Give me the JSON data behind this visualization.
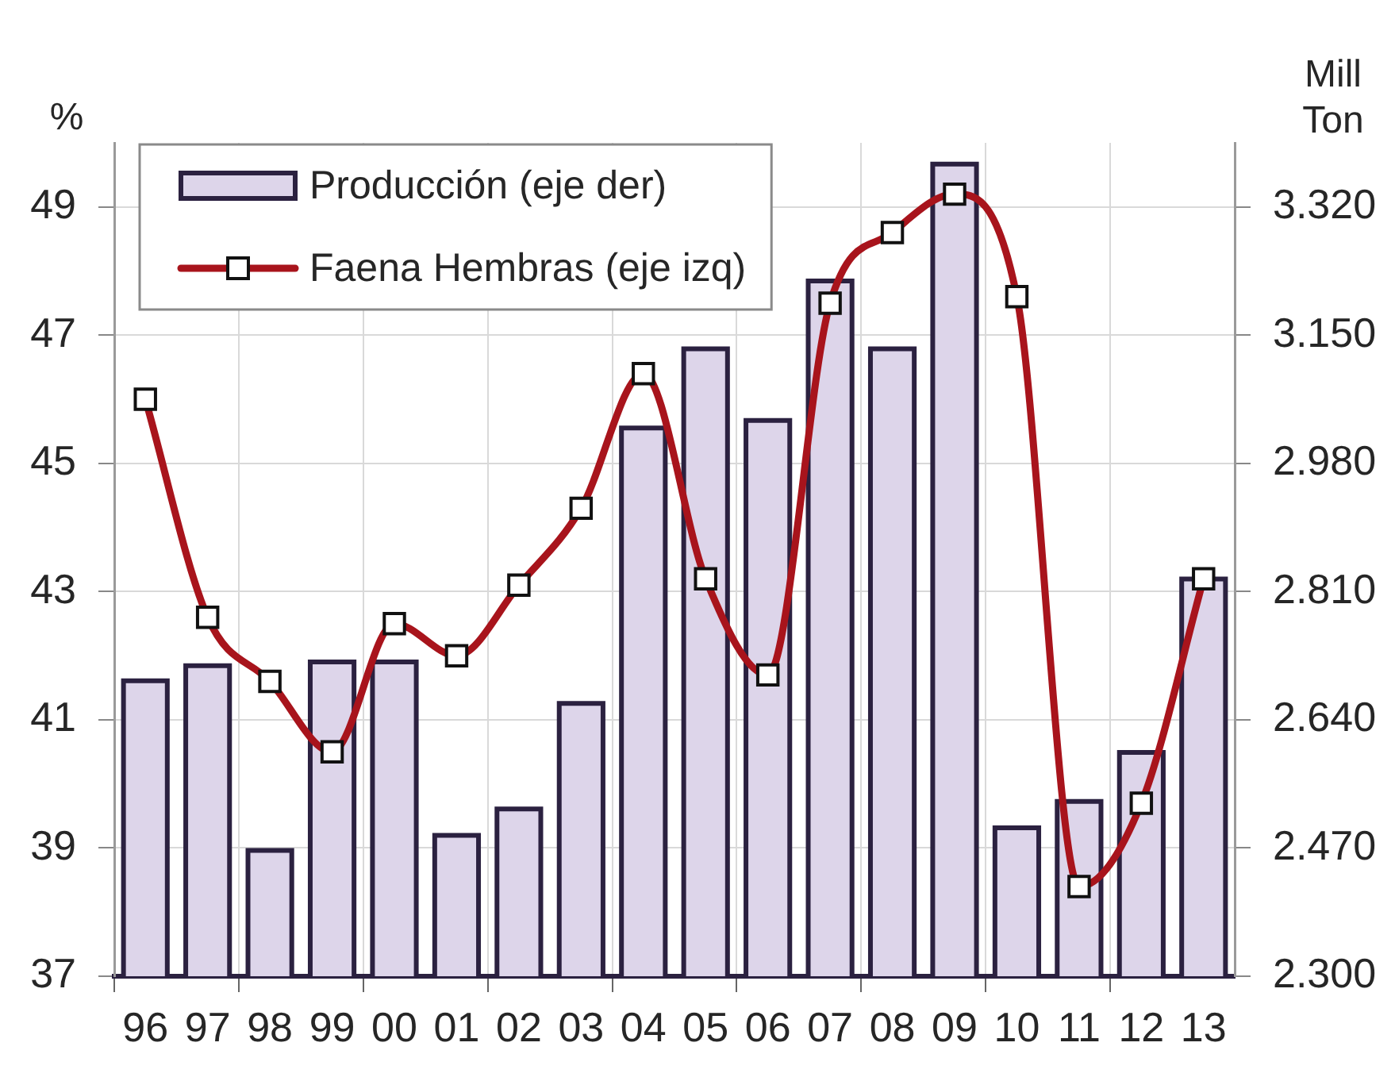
{
  "chart_data": {
    "type": "bar",
    "categories": [
      "96",
      "97",
      "98",
      "99",
      "00",
      "01",
      "02",
      "03",
      "04",
      "05",
      "06",
      "07",
      "08",
      "09",
      "10",
      "11",
      "12",
      "13"
    ],
    "series": [
      {
        "name": "Producción (eje der)",
        "axis": "y2",
        "color": "#ddd5ea",
        "values": [
          2695,
          2715,
          2470,
          2720,
          2720,
          2490,
          2525,
          2665,
          3030,
          3135,
          3040,
          3225,
          3135,
          3380,
          2500,
          2535,
          2600,
          2830
        ]
      },
      {
        "name": "Faena Hembras (eje izq)",
        "type": "line",
        "color": "#a8141c",
        "values": [
          46.0,
          42.6,
          41.6,
          40.5,
          42.5,
          42.0,
          43.1,
          44.3,
          46.4,
          43.2,
          41.7,
          47.5,
          48.6,
          49.2,
          47.6,
          38.4,
          39.7,
          43.2
        ]
      }
    ],
    "ylabel": "%",
    "y2label": "Mill Ton",
    "ylim": [
      37,
      50
    ],
    "yticks": [
      37,
      39,
      41,
      43,
      45,
      47,
      49
    ],
    "y2lim": [
      2300,
      3405
    ],
    "y2ticks": [
      {
        "value": 2300,
        "label": "2.300"
      },
      {
        "value": 2470,
        "label": "2.470"
      },
      {
        "value": 2640,
        "label": "2.640"
      },
      {
        "value": 2810,
        "label": "2.810"
      },
      {
        "value": 2980,
        "label": "2.980"
      },
      {
        "value": 3150,
        "label": "3.150"
      },
      {
        "value": 3320,
        "label": "3.320"
      }
    ],
    "grid": true,
    "legend": "top left",
    "marker": "square"
  }
}
